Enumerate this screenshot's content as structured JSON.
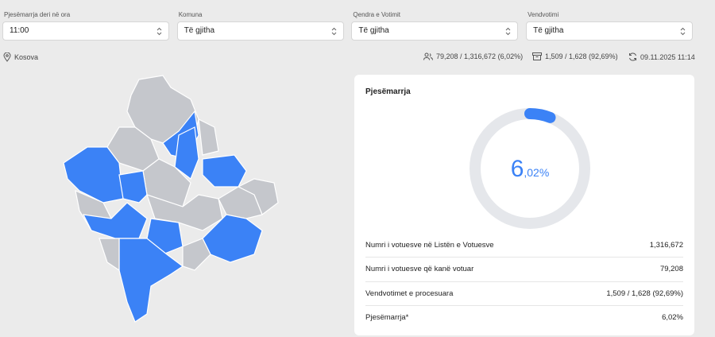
{
  "filters": [
    {
      "label": "Pjesëmarrja deri në ora",
      "value": "11:00"
    },
    {
      "label": "Komuna",
      "value": "Të gjitha"
    },
    {
      "label": "Qendra e Votimit",
      "value": "Të gjitha"
    },
    {
      "label": "Vendvotimi",
      "value": "Të gjitha"
    }
  ],
  "location": "Kosova",
  "stats": [
    "79,208 / 1,316,672 (6,02%)",
    "1,509 / 1,628 (92,69%)",
    "09.11.2025 11:14"
  ],
  "card": {
    "title": "Pjesëmarrja",
    "gauge": {
      "value": 6.02,
      "label_parts": [
        "6",
        ",02%"
      ]
    },
    "rows": [
      [
        "Numri i votuesve në Listën e Votuesve",
        "1,316,672"
      ],
      [
        "Numri i votuesve që kanë votuar",
        "79,208"
      ],
      [
        "Vendvotimet e procesuara",
        "1,509 / 1,628 (92,69%)"
      ],
      [
        "Pjesëmarrja*",
        "6,02%"
      ]
    ]
  }
}
